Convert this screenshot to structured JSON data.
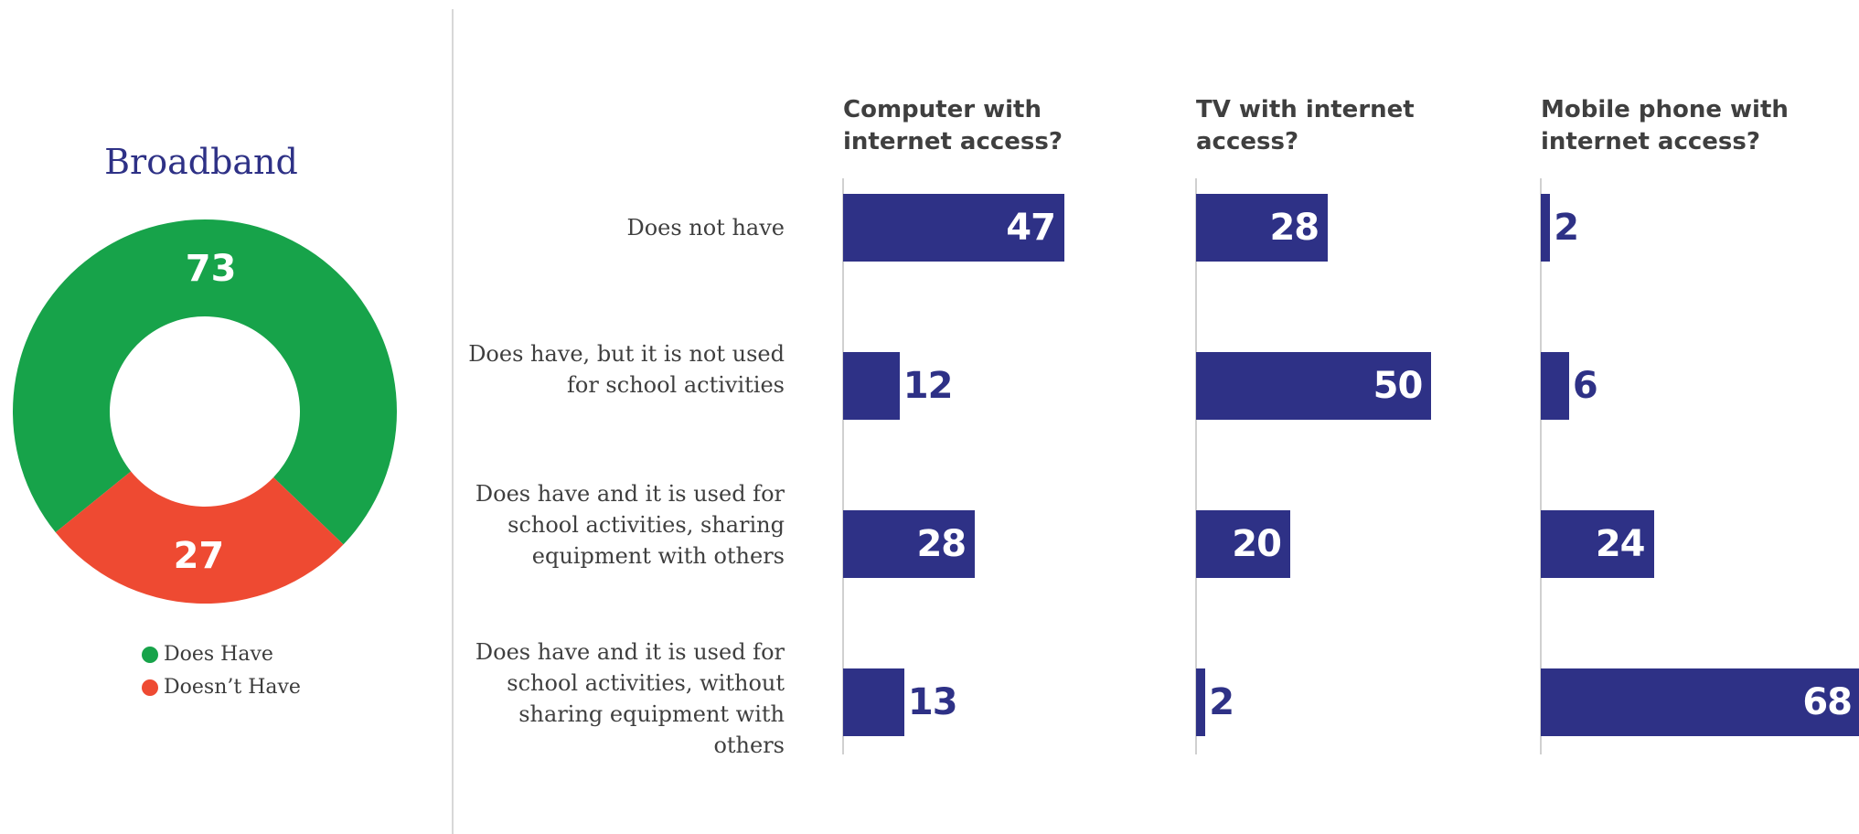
{
  "donut": {
    "title": "Broadband",
    "legend": [
      {
        "label": "Does Have",
        "color": "#17a34a"
      },
      {
        "label": "Doesn’t Have",
        "color": "#ee4a32"
      }
    ]
  },
  "colors": {
    "bar": "#2e3186",
    "bar_label_inside": "#ffffff",
    "bar_label_outside": "#2e3186"
  },
  "rows": [
    "Does not have",
    "Does have, but it is not used for  school activities",
    "Does have and it is used for school activities, sharing equipment with others",
    "Does have and it is used for school activities, without sharing equipment with others"
  ],
  "panels": [
    {
      "title": "Computer with internet access?"
    },
    {
      "title": "TV with internet access?"
    },
    {
      "title": "Mobile phone with internet access?"
    }
  ],
  "chart_data": [
    {
      "type": "pie",
      "title": "Broadband",
      "categories": [
        "Does Have",
        "Doesn’t Have"
      ],
      "values": [
        73,
        27
      ],
      "colors": [
        "#17a34a",
        "#ee4a32"
      ],
      "donut": true,
      "legend": "bottom"
    },
    {
      "type": "bar",
      "orientation": "horizontal",
      "title": "Computer with internet access?",
      "categories": [
        "Does not have",
        "Does have, but it is not used for  school activities",
        "Does have and it is used for school activities, sharing equipment with others",
        "Does have and it is used for school activities, without sharing equipment with others"
      ],
      "values": [
        47,
        12,
        28,
        13
      ],
      "xlim": [
        0,
        70
      ]
    },
    {
      "type": "bar",
      "orientation": "horizontal",
      "title": "TV with internet access?",
      "categories": [
        "Does not have",
        "Does have, but it is not used for  school activities",
        "Does have and it is used for school activities, sharing equipment with others",
        "Does have and it is used for school activities, without sharing equipment with others"
      ],
      "values": [
        28,
        50,
        20,
        2
      ],
      "xlim": [
        0,
        70
      ]
    },
    {
      "type": "bar",
      "orientation": "horizontal",
      "title": "Mobile phone with internet access?",
      "categories": [
        "Does not have",
        "Does have, but it is not used for  school activities",
        "Does have and it is used for school activities, sharing equipment with others",
        "Does have and it is used for school activities, without sharing equipment with others"
      ],
      "values": [
        2,
        6,
        24,
        68
      ],
      "xlim": [
        0,
        70
      ]
    }
  ]
}
